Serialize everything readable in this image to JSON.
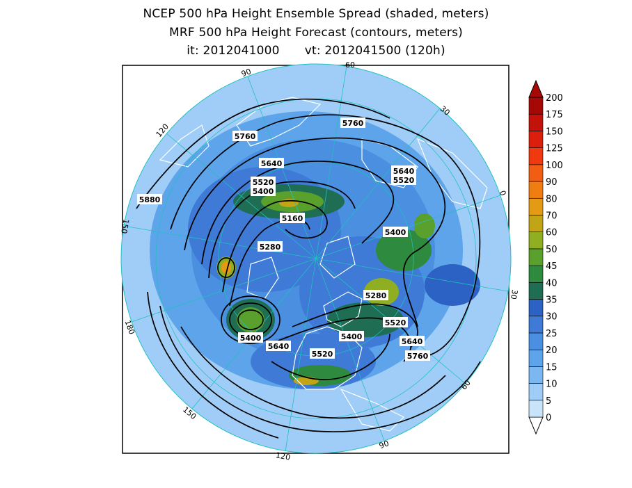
{
  "title": {
    "line1": "NCEP 500 hPa Height Ensemble Spread (shaded, meters)",
    "line2": "MRF 500 hPa Height Forecast (contours, meters)",
    "init": "it: 2012041000",
    "valid": "vt: 2012041500 (120h)"
  },
  "longitude_labels": [
    "60",
    "30",
    "0",
    "30",
    "60",
    "90",
    "120",
    "150",
    "180",
    "150",
    "120",
    "90"
  ],
  "contour_labels": [
    "5760",
    "5760",
    "5640",
    "5640",
    "5520",
    "5520",
    "5400",
    "5160",
    "5400",
    "5280",
    "5880",
    "5280",
    "5520",
    "5400",
    "5640",
    "5400",
    "5640",
    "5520",
    "5760"
  ],
  "colorbar": {
    "labels": [
      "0",
      "5",
      "10",
      "15",
      "20",
      "25",
      "30",
      "35",
      "40",
      "45",
      "50",
      "60",
      "70",
      "80",
      "90",
      "100",
      "125",
      "150",
      "175",
      "200"
    ],
    "colors": [
      "#c8e4fb",
      "#9fcdf7",
      "#7bb7f0",
      "#5ea4ea",
      "#4a8fe0",
      "#3e7ad6",
      "#2c62c4",
      "#1f6d52",
      "#2e8a3e",
      "#5aa02c",
      "#8fae22",
      "#c2a417",
      "#e39a14",
      "#ef7d12",
      "#f15d12",
      "#f0390f",
      "#dc1f0c",
      "#c2120a",
      "#a60806"
    ]
  }
}
